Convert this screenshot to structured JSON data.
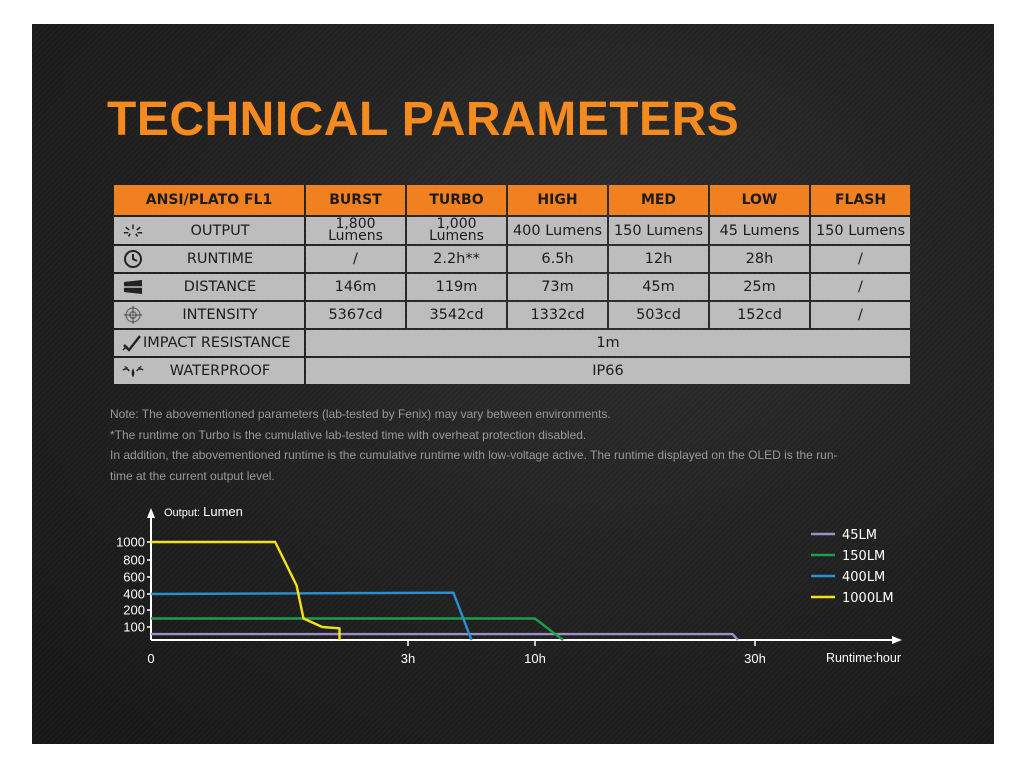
{
  "title": "TECHNICAL PARAMETERS",
  "table": {
    "headers": [
      "ANSI/PLATO FL1",
      "BURST",
      "TURBO",
      "HIGH",
      "MED",
      "LOW",
      "FLASH"
    ],
    "rows": [
      {
        "label": "OUTPUT",
        "icon": "light-rays-icon",
        "values": [
          "1,800|Lumens",
          "1,000|Lumens",
          "400 Lumens",
          "150 Lumens",
          "45 Lumens",
          "150 Lumens"
        ]
      },
      {
        "label": "RUNTIME",
        "icon": "clock-icon",
        "values": [
          "/",
          "2.2h**",
          "6.5h",
          "12h",
          "28h",
          "/"
        ]
      },
      {
        "label": "DISTANCE",
        "icon": "beam-icon",
        "values": [
          "146m",
          "119m",
          "73m",
          "45m",
          "25m",
          "/"
        ]
      },
      {
        "label": "INTENSITY",
        "icon": "crosshair-icon",
        "values": [
          "5367cd",
          "3542cd",
          "1332cd",
          "503cd",
          "152cd",
          "/"
        ]
      }
    ],
    "impact": {
      "label": "IMPACT RESISTANCE",
      "icon": "impact-icon",
      "value": "1m"
    },
    "waterproof": {
      "label": "WATERPROOF",
      "icon": "water-splash-icon",
      "value": "IP66"
    }
  },
  "notes": [
    "Note: The abovementioned parameters (lab-tested by Fenix) may vary between environments.",
    "*The runtime on Turbo is the cumulative lab-tested time with overheat protection disabled.",
    "In addition, the abovementioned runtime is the cumulative runtime with low-voltage active. The runtime displayed on the OLED is the run-",
    "time at the current output level."
  ],
  "chart_data": {
    "type": "line",
    "ylabel_prefix": "Output:",
    "ylabel": "Lumen",
    "xlabel": "Runtime:hour",
    "x_ticks": [
      "0",
      "3h",
      "10h",
      "30h"
    ],
    "y_ticks": [
      1000,
      800,
      600,
      400,
      200,
      100
    ],
    "legend_position": "right",
    "series": [
      {
        "name": "45LM",
        "color": "#9b8fc4",
        "points": [
          [
            0,
            45
          ],
          [
            27.5,
            45
          ],
          [
            28,
            0
          ]
        ]
      },
      {
        "name": "150LM",
        "color": "#1d9e4a",
        "points": [
          [
            0,
            150
          ],
          [
            10,
            150
          ],
          [
            12,
            0
          ]
        ]
      },
      {
        "name": "400LM",
        "color": "#2a8fd2",
        "points": [
          [
            0,
            400
          ],
          [
            5.5,
            415
          ],
          [
            6.5,
            0
          ]
        ]
      },
      {
        "name": "1000LM",
        "color": "#f3e21a",
        "points": [
          [
            0,
            1000
          ],
          [
            1.45,
            1000
          ],
          [
            1.7,
            500
          ],
          [
            1.78,
            150
          ],
          [
            2.0,
            100
          ],
          [
            2.2,
            90
          ],
          [
            2.2,
            0
          ]
        ]
      }
    ]
  }
}
